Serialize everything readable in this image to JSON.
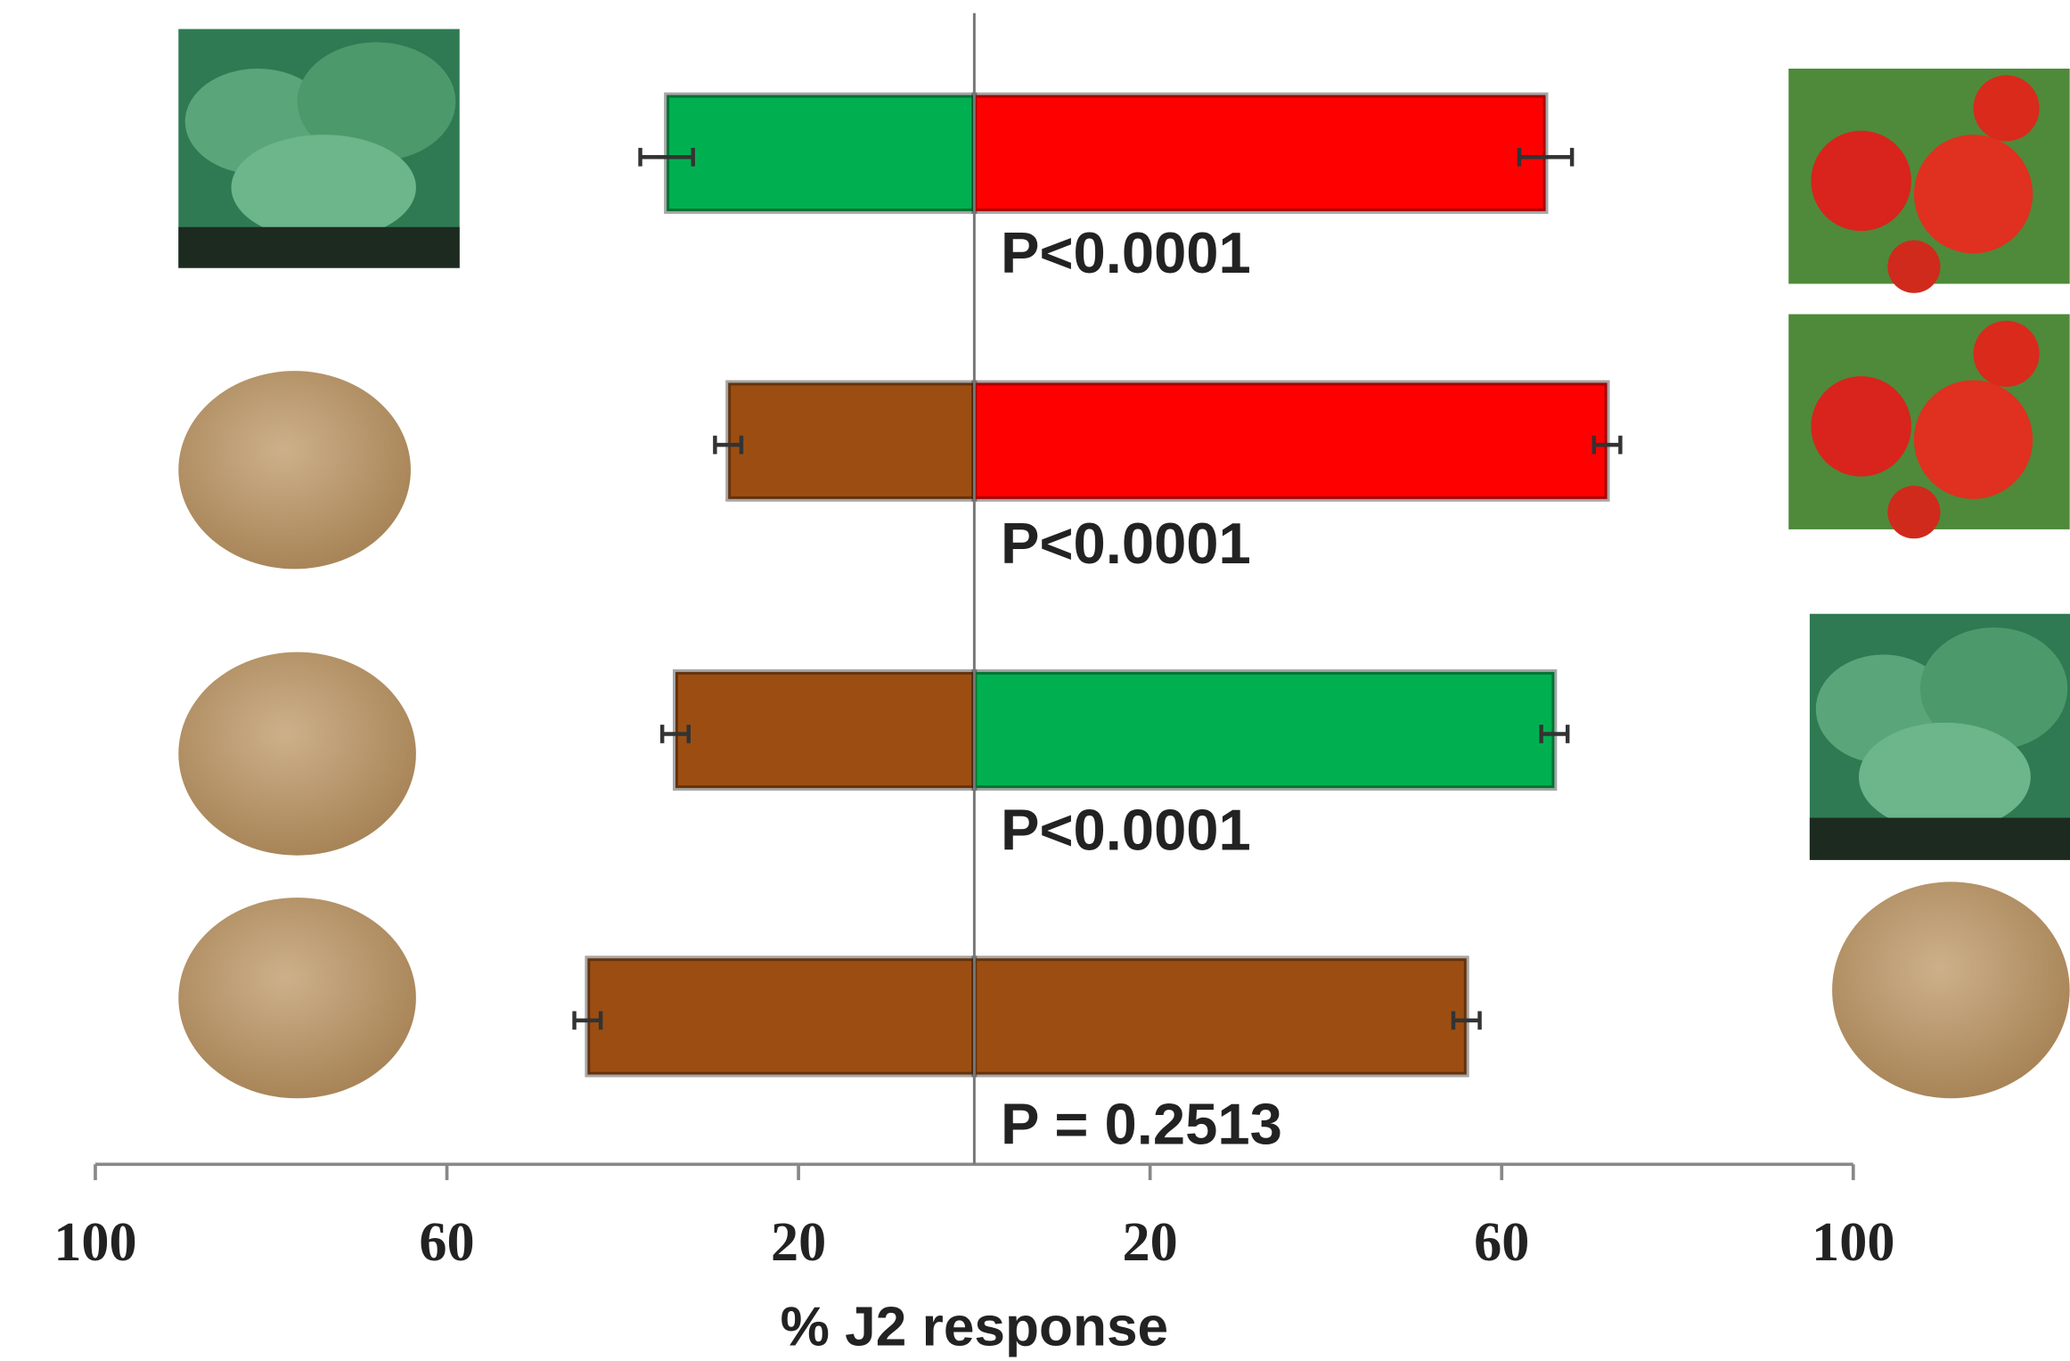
{
  "chart_data": {
    "type": "diverging-bar",
    "x_label": "% J2 response",
    "xlim": [
      0,
      100
    ],
    "xticks": [
      20,
      60,
      100
    ],
    "series": [
      {
        "side": "left",
        "colors": [
          "#00b050",
          "#9c4e12",
          "#9c4e12",
          "#9c4e12"
        ],
        "values": [
          35,
          28,
          34,
          44
        ],
        "errors": [
          3,
          1.5,
          1.5,
          1.5
        ]
      },
      {
        "side": "right",
        "colors": [
          "#ff0000",
          "#ff0000",
          "#00b050",
          "#9c4e12"
        ],
        "values": [
          65,
          72,
          66,
          56
        ],
        "errors": [
          3,
          1.5,
          1.5,
          1.5
        ]
      }
    ],
    "annotations": [
      "P<0.0001",
      "P<0.0001",
      "P<0.0001",
      "P = 0.2513"
    ]
  }
}
